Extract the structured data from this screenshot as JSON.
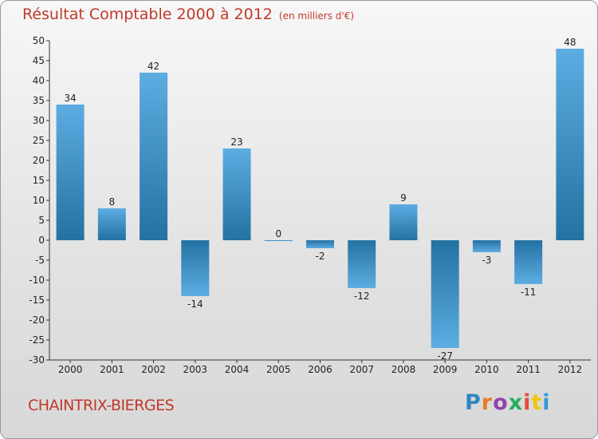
{
  "title": {
    "main": "Résultat Comptable 2000 à 2012",
    "unit": "(en milliers d'€)"
  },
  "commune": "CHAINTRIX-BIERGES",
  "logo": {
    "letters": [
      "P",
      "r",
      "o",
      "x",
      "i",
      "t",
      "i"
    ]
  },
  "colors": {
    "title": "#c0392b",
    "bar_light": "#5dade2",
    "bar_dark": "#2471a3"
  },
  "chart_data": {
    "type": "bar",
    "title": "Résultat Comptable 2000 à 2012",
    "subtitle": "(en milliers d'€)",
    "xlabel": "",
    "ylabel": "",
    "categories": [
      "2000",
      "2001",
      "2002",
      "2003",
      "2004",
      "2005",
      "2006",
      "2007",
      "2008",
      "2009",
      "2010",
      "2011",
      "2012"
    ],
    "values": [
      34,
      8,
      42,
      -14,
      23,
      0,
      -2,
      -12,
      9,
      -27,
      -3,
      -11,
      48
    ],
    "labels": [
      "34",
      "8",
      "42",
      "-14",
      "23",
      "0",
      "-2",
      "-12",
      "9",
      "-27",
      "-3",
      "-11",
      "48"
    ],
    "ylim": [
      -30,
      50
    ],
    "yticks": [
      -30,
      -25,
      -20,
      -15,
      -10,
      -5,
      0,
      5,
      10,
      15,
      20,
      25,
      30,
      35,
      40,
      45,
      50
    ],
    "grid": false,
    "legend": "none"
  }
}
